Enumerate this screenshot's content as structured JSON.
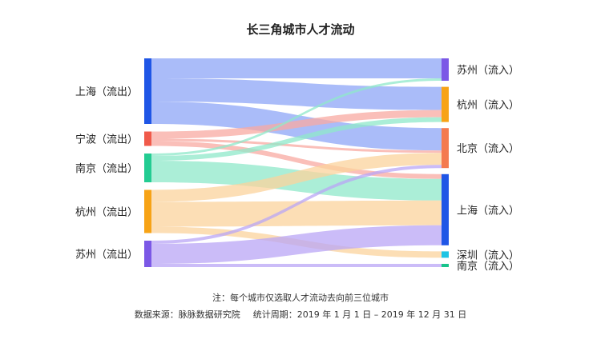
{
  "chart_data": {
    "type": "sankey",
    "title": "长三角城市人才流动",
    "sources": [
      {
        "id": "SH",
        "label": "上海（流出）",
        "color": "#1f56e6"
      },
      {
        "id": "NB",
        "label": "宁波（流出）",
        "color": "#f05a4a"
      },
      {
        "id": "NJ",
        "label": "南京（流出）",
        "color": "#23cc92"
      },
      {
        "id": "HZ",
        "label": "杭州（流出）",
        "color": "#f7a316"
      },
      {
        "id": "SZ",
        "label": "苏州（流出）",
        "color": "#7b58e6"
      }
    ],
    "targets": [
      {
        "id": "SZ",
        "label": "苏州（流入）",
        "color": "#7b58e6"
      },
      {
        "id": "HZ",
        "label": "杭州（流入）",
        "color": "#f7a316"
      },
      {
        "id": "BJ",
        "label": "北京（流入）",
        "color": "#f47a4f"
      },
      {
        "id": "SH",
        "label": "上海（流入）",
        "color": "#1f56e6"
      },
      {
        "id": "SZN",
        "label": "深圳（流入）",
        "color": "#1ec4e4"
      },
      {
        "id": "NJ",
        "label": "南京（流入）",
        "color": "#18c48b"
      }
    ],
    "links": [
      {
        "source": "SH",
        "target": "SZ",
        "value": 25
      },
      {
        "source": "SH",
        "target": "HZ",
        "value": 29
      },
      {
        "source": "SH",
        "target": "BJ",
        "value": 28
      },
      {
        "source": "NB",
        "target": "HZ",
        "value": 9
      },
      {
        "source": "NB",
        "target": "BJ",
        "value": 3
      },
      {
        "source": "NB",
        "target": "SH",
        "value": 6
      },
      {
        "source": "NJ",
        "target": "SZ",
        "value": 3
      },
      {
        "source": "NJ",
        "target": "HZ",
        "value": 6
      },
      {
        "source": "NJ",
        "target": "SH",
        "value": 27
      },
      {
        "source": "HZ",
        "target": "BJ",
        "value": 15
      },
      {
        "source": "HZ",
        "target": "SH",
        "value": 31
      },
      {
        "source": "HZ",
        "target": "SZN",
        "value": 8
      },
      {
        "source": "SZ",
        "target": "BJ",
        "value": 4
      },
      {
        "source": "SZ",
        "target": "SH",
        "value": 25
      },
      {
        "source": "SZ",
        "target": "NJ",
        "value": 4
      }
    ]
  },
  "footer": {
    "note": "注：每个城市仅选取人才流动去向前三位城市",
    "source": "数据来源：脉脉数据研究院",
    "period": "统计周期：2019 年 1 月 1 日 – 2019 年 12 月 31 日"
  }
}
